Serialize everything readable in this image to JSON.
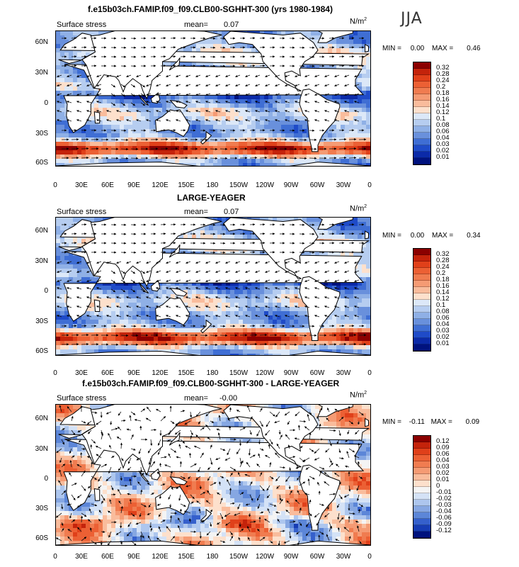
{
  "season": "JJA",
  "lat_labels": [
    "60N",
    "30N",
    "0",
    "30S",
    "60S"
  ],
  "lon_labels": [
    "0",
    "30E",
    "60E",
    "90E",
    "120E",
    "150E",
    "180",
    "150W",
    "120W",
    "90W",
    "60W",
    "30W",
    "0"
  ],
  "panels": [
    {
      "title": "f.e15b03ch.FAMIP.f09_f09.CLB00-SGHHT-300 (yrs 1980-1984)",
      "field": "Surface stress",
      "mean_label": "mean=",
      "mean_value": "0.07",
      "units": "N/m",
      "units_sup": "2",
      "min_label": "MIN =",
      "min_value": "0.00",
      "max_label": "MAX =",
      "max_value": "0.46",
      "legend_labels": [
        "0.32",
        "0.28",
        "0.24",
        "0.2",
        "0.18",
        "0.16",
        "0.14",
        "0.12",
        "0.1",
        "0.08",
        "0.06",
        "0.04",
        "0.03",
        "0.02",
        "0.01"
      ],
      "legend_colors": [
        "#8b0000",
        "#c4230b",
        "#e0401a",
        "#ec6034",
        "#f07c50",
        "#f59b74",
        "#f9bc9c",
        "#fde0cc",
        "#dce8f8",
        "#b6cdf0",
        "#8fb0e6",
        "#6990dc",
        "#3f6ed4",
        "#1f4bc8",
        "#0b2aa8",
        "#00127e"
      ]
    },
    {
      "title": "LARGE-YEAGER",
      "field": "Surface stress",
      "mean_label": "mean=",
      "mean_value": "0.07",
      "units": "N/m",
      "units_sup": "2",
      "min_label": "MIN =",
      "min_value": "0.00",
      "max_label": "MAX =",
      "max_value": "0.34",
      "legend_labels": [
        "0.32",
        "0.28",
        "0.24",
        "0.2",
        "0.18",
        "0.16",
        "0.14",
        "0.12",
        "0.1",
        "0.08",
        "0.06",
        "0.04",
        "0.03",
        "0.02",
        "0.01"
      ],
      "legend_colors": [
        "#8b0000",
        "#c4230b",
        "#e0401a",
        "#ec6034",
        "#f07c50",
        "#f59b74",
        "#f9bc9c",
        "#fde0cc",
        "#dce8f8",
        "#b6cdf0",
        "#8fb0e6",
        "#6990dc",
        "#3f6ed4",
        "#1f4bc8",
        "#0b2aa8",
        "#00127e"
      ]
    },
    {
      "title": "f.e15b03ch.FAMIP.f09_f09.CLB00-SGHHT-300 - LARGE-YEAGER",
      "field": "Surface stress",
      "mean_label": "mean=",
      "mean_value": "-0.00",
      "units": "N/m",
      "units_sup": "2",
      "min_label": "MIN =",
      "min_value": "-0.11",
      "max_label": "MAX =",
      "max_value": "0.09",
      "legend_labels": [
        "0.12",
        "0.09",
        "0.06",
        "0.04",
        "0.03",
        "0.02",
        "0.01",
        "0",
        "-0.01",
        "-0.02",
        "-0.03",
        "-0.04",
        "-0.06",
        "-0.09",
        "-0.12"
      ],
      "legend_colors": [
        "#8b0000",
        "#c4230b",
        "#e0401a",
        "#ec6034",
        "#f07c50",
        "#f59b74",
        "#f9bc9c",
        "#fde0cc",
        "#f4f4f4",
        "#d4e2f6",
        "#adc6ee",
        "#86a7e2",
        "#5c86d8",
        "#3560cc",
        "#163cb4",
        "#00127e"
      ]
    }
  ]
}
